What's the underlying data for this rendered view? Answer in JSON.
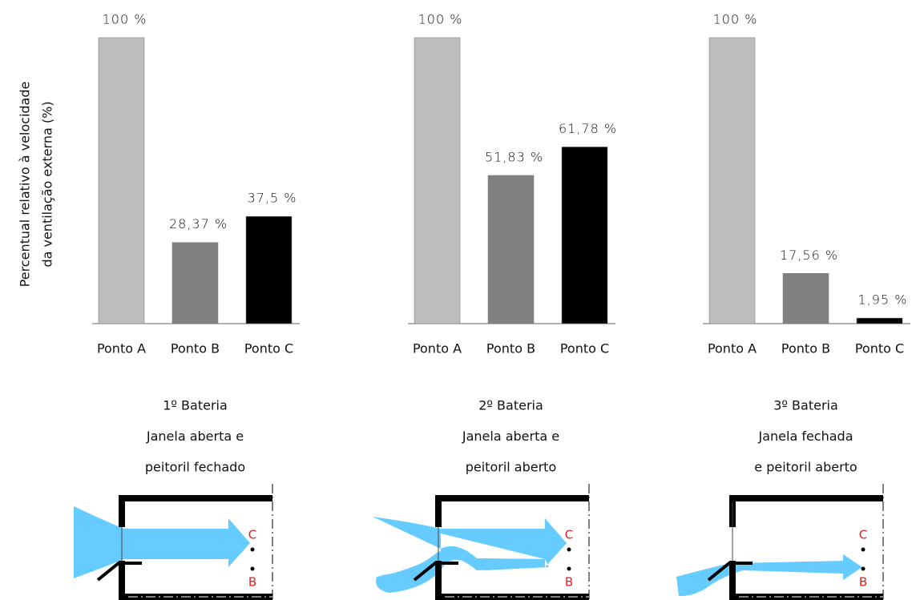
{
  "chart_data": [
    {
      "type": "bar",
      "title": [
        "1º Bateria",
        "Janela aberta e",
        "peitoril fechado"
      ],
      "ylabel": [
        "Percentual relativo à velocidade",
        "da ventilação externa (%)"
      ],
      "categories": [
        "Ponto A",
        "Ponto B",
        "Ponto C"
      ],
      "values": [
        100,
        28.37,
        37.5
      ],
      "value_labels": [
        "100 %",
        "28,37 %",
        "37,5 %"
      ],
      "colors": [
        "#bdbdbd",
        "#808080",
        "#000000"
      ]
    },
    {
      "type": "bar",
      "title": [
        "2º Bateria",
        "Janela aberta e",
        "peitoril aberto"
      ],
      "categories": [
        "Ponto A",
        "Ponto B",
        "Ponto C"
      ],
      "values": [
        100,
        51.83,
        61.78
      ],
      "value_labels": [
        "100 %",
        "51,83 %",
        "61,78 %"
      ],
      "colors": [
        "#bdbdbd",
        "#808080",
        "#000000"
      ]
    },
    {
      "type": "bar",
      "title": [
        "3º Bateria",
        "Janela fechada",
        "e peitoril aberto"
      ],
      "categories": [
        "Ponto A",
        "Ponto B",
        "Ponto C"
      ],
      "values": [
        100,
        17.56,
        1.95
      ],
      "value_labels": [
        "100 %",
        "17,56 %",
        "1,95 %"
      ],
      "colors": [
        "#bdbdbd",
        "#808080",
        "#000000"
      ]
    }
  ],
  "diagrams": [
    {
      "labels": [
        "C",
        "B"
      ]
    },
    {
      "labels": [
        "C",
        "B"
      ]
    },
    {
      "labels": [
        "C",
        "B"
      ]
    }
  ]
}
